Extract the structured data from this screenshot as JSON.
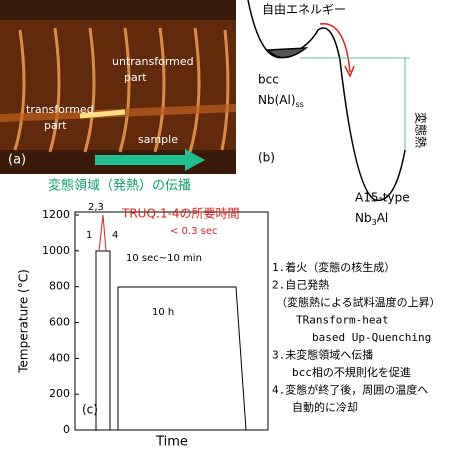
{
  "panel_a": {
    "label": "(a)",
    "transformed": [
      "transformed",
      "part"
    ],
    "untransformed": [
      "untransformed",
      "part"
    ],
    "sample": "sample",
    "caption": "変態領域（発熱）の伝播"
  },
  "panel_b": {
    "energy": "自由エネルギー",
    "bcc": "bcc",
    "nbal": "Nb(Al)",
    "nbal_sub": "ss",
    "heat": "変態熱",
    "label": "(b)",
    "a15": "A15-type",
    "nb3al_a": "Nb",
    "nb3al_sub": "3",
    "nb3al_b": "Al"
  },
  "panel_c": {
    "ylabel": "Temperature (°C)",
    "xlabel": "Time",
    "ylim": [
      0,
      1200
    ],
    "yticks": [
      0,
      200,
      400,
      600,
      800,
      1000,
      1200
    ],
    "truq": "TRUQ:1-4の所要時間",
    "truq_time": "< 0.3 sec",
    "step1": "1",
    "step23": "2,3",
    "step4": "4",
    "dwell": "10 sec~10 min",
    "anneal": "10 h",
    "label": "(c)"
  },
  "notes": [
    "1.着火（変態の核生成）",
    "2.自己発熱",
    "（変態熱による試料温度の上昇）",
    "TRansform-heat",
    "based Up-Quenching",
    "3.未変態領域へ伝播",
    "bcc相の不規則化を促進",
    "4.変態が終了後，周囲の温度へ",
    "自動的に冷却"
  ]
}
